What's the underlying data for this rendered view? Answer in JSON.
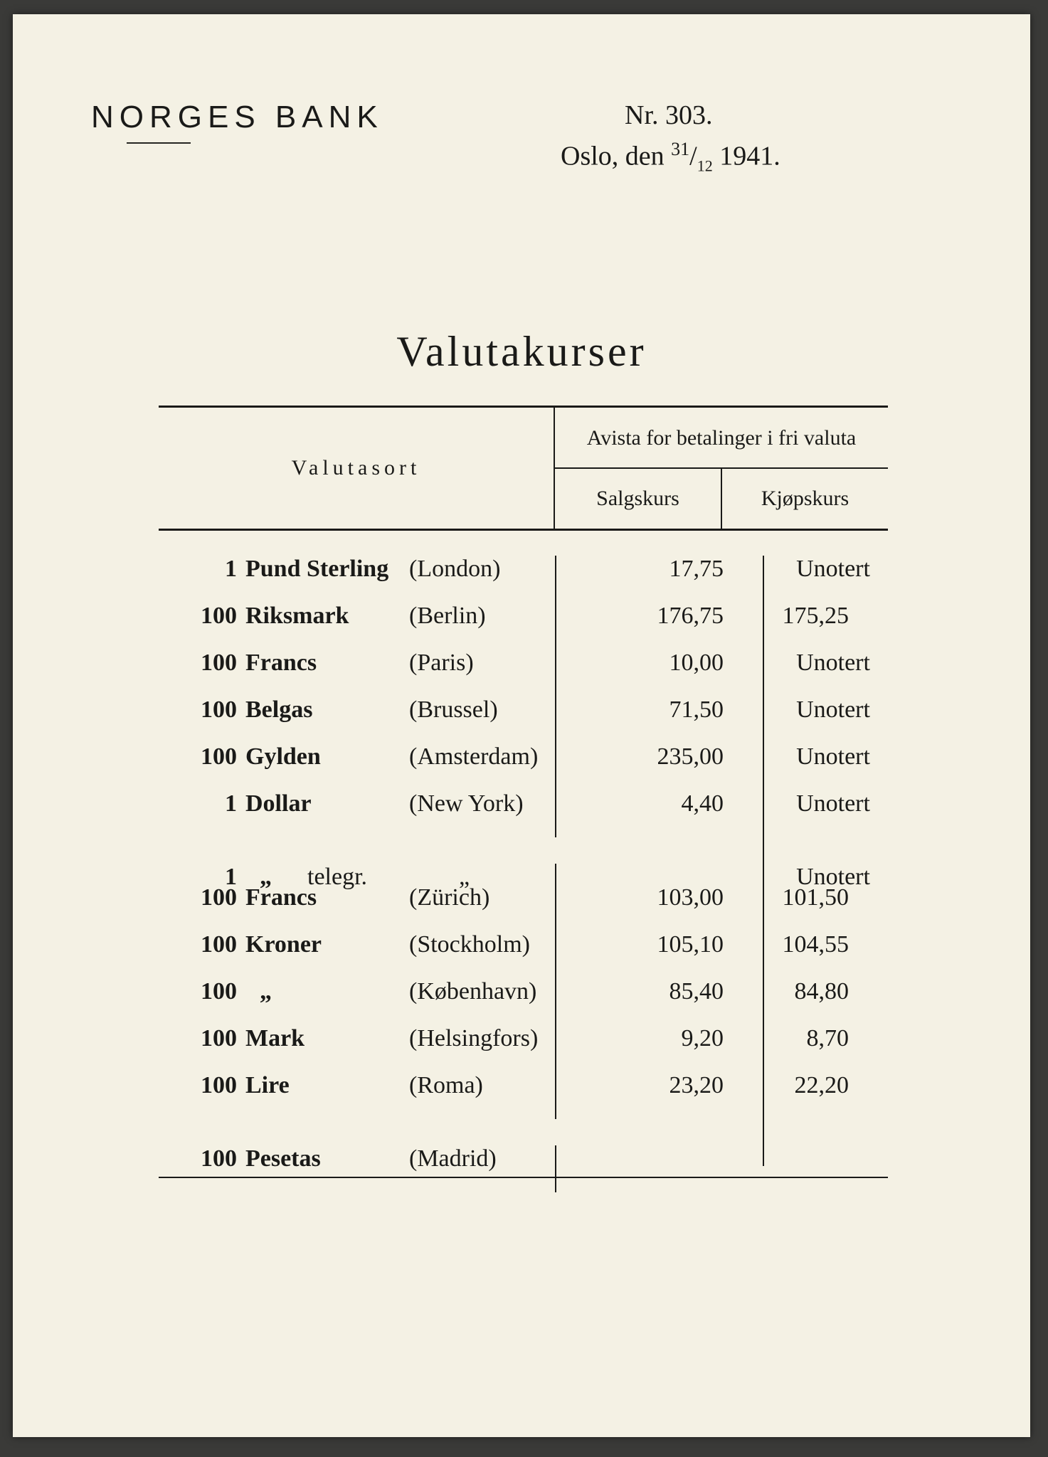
{
  "colors": {
    "paper": "#f4f1e4",
    "ink": "#1a1a18",
    "outer": "#3a3a38"
  },
  "header": {
    "bank_name": "NORGES BANK",
    "number_label": "Nr. 303.",
    "date_prefix": "Oslo, den ",
    "date_day": "31",
    "date_month": "12",
    "date_year": " 1941."
  },
  "title": "Valutakurser",
  "table": {
    "head_left": "Valutasort",
    "head_right_top": "Avista for betalinger i fri valuta",
    "head_sell": "Salgskurs",
    "head_buy": "Kjøpskurs",
    "rows": [
      {
        "qty": "1",
        "name": "Pund Sterling",
        "city": "(London)",
        "sell": "17,75",
        "buy": "Unotert",
        "buy_is_text": true
      },
      {
        "qty": "100",
        "name": "Riksmark",
        "city": "(Berlin)",
        "sell": "176,75",
        "buy": "175,25"
      },
      {
        "qty": "100",
        "name": "Francs",
        "city": "(Paris)",
        "sell": "10,00",
        "buy": "Unotert",
        "buy_is_text": true
      },
      {
        "qty": "100",
        "name": "Belgas",
        "city": "(Brussel)",
        "sell": "71,50",
        "buy": "Unotert",
        "buy_is_text": true
      },
      {
        "qty": "100",
        "name": "Gylden",
        "city": "(Amsterdam)",
        "sell": "235,00",
        "buy": "Unotert",
        "buy_is_text": true
      },
      {
        "qty": "1",
        "name": "Dollar",
        "city": "(New York)",
        "sell": "4,40",
        "buy": "Unotert",
        "buy_is_text": true
      },
      {
        "qty": "1",
        "name": "„",
        "name_suffix": "telegr.",
        "city": "„",
        "city_ditto": true,
        "sell": "",
        "buy": "Unotert",
        "buy_is_text": true
      },
      {
        "qty": "100",
        "name": "Francs",
        "city": "(Zürich)",
        "sell": "103,00",
        "buy": "101,50"
      },
      {
        "qty": "100",
        "name": "Kroner",
        "city": "(Stockholm)",
        "sell": "105,10",
        "buy": "104,55"
      },
      {
        "qty": "100",
        "name": "„",
        "city": "(København)",
        "sell": "85,40",
        "buy": "84,80"
      },
      {
        "qty": "100",
        "name": "Mark",
        "city": "(Helsingfors)",
        "sell": "9,20",
        "buy": "8,70"
      },
      {
        "qty": "100",
        "name": "Lire",
        "city": "(Roma)",
        "sell": "23,20",
        "buy": "22,20"
      },
      {
        "qty": "100",
        "name": "Pesetas",
        "city": "(Madrid)",
        "sell": "",
        "buy": ""
      }
    ]
  }
}
